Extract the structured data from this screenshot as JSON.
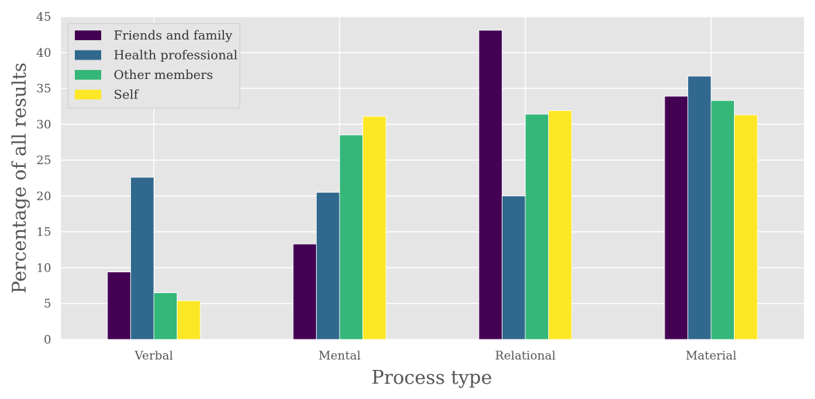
{
  "chart_data": {
    "type": "bar",
    "title": "",
    "xlabel": "Process type",
    "ylabel": "Percentage of all results",
    "categories": [
      "Verbal",
      "Mental",
      "Relational",
      "Material"
    ],
    "ylim": [
      0,
      45
    ],
    "yticks": [
      0,
      5,
      10,
      15,
      20,
      25,
      30,
      35,
      40,
      45
    ],
    "grid": true,
    "legend_position": "top-left",
    "series": [
      {
        "name": "Friends and family",
        "color": "#440154",
        "values": [
          9.4,
          13.3,
          43.1,
          33.9
        ]
      },
      {
        "name": "Health professional",
        "color": "#31688e",
        "values": [
          22.6,
          20.5,
          20.0,
          36.7
        ]
      },
      {
        "name": "Other members",
        "color": "#35b779",
        "values": [
          6.5,
          28.5,
          31.4,
          33.3
        ]
      },
      {
        "name": "Self",
        "color": "#fde725",
        "values": [
          5.4,
          31.1,
          31.9,
          31.3
        ]
      }
    ]
  }
}
